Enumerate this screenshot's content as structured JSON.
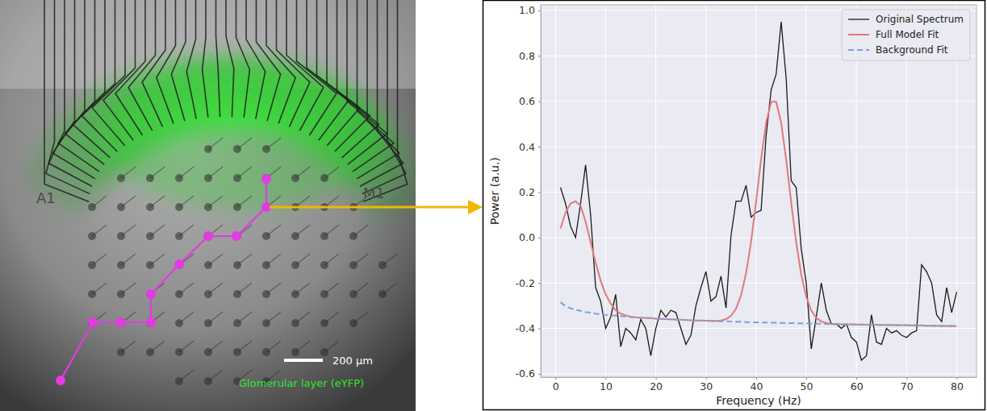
{
  "chart_data": {
    "type": "line",
    "x": [
      1,
      2,
      3,
      4,
      5,
      6,
      7,
      8,
      9,
      10,
      11,
      12,
      13,
      14,
      15,
      16,
      17,
      18,
      19,
      20,
      21,
      22,
      23,
      24,
      25,
      26,
      27,
      28,
      29,
      30,
      31,
      32,
      33,
      34,
      35,
      36,
      37,
      38,
      39,
      40,
      41,
      42,
      43,
      44,
      45,
      46,
      47,
      48,
      49,
      50,
      51,
      52,
      53,
      54,
      55,
      56,
      57,
      58,
      59,
      60,
      61,
      62,
      63,
      64,
      65,
      66,
      67,
      68,
      69,
      70,
      71,
      72,
      73,
      74,
      75,
      76,
      77,
      78,
      79,
      80
    ],
    "xlim": [
      -2.95,
      83.95
    ],
    "xticks": [
      0,
      10,
      20,
      30,
      40,
      50,
      60,
      70,
      80
    ],
    "ylim": [
      -0.6145,
      1.0245
    ],
    "yticks": [
      -0.6,
      -0.4,
      -0.2,
      {
        "value": 0,
        "label": "0.0"
      },
      0.2,
      0.4,
      0.6,
      0.8,
      {
        "value": 1,
        "label": "1.0"
      }
    ],
    "x_label": "Frequency (Hz)",
    "y_label": "Power (a.u.)",
    "grid": true,
    "legend": "upper right",
    "series": [
      {
        "name": "Original Spectrum",
        "color": "#1a1a1a",
        "line_style": "solid",
        "values": [
          0.22,
          0.15,
          0.05,
          0.0,
          0.15,
          0.32,
          0.1,
          -0.22,
          -0.28,
          -0.4,
          -0.35,
          -0.25,
          -0.48,
          -0.4,
          -0.42,
          -0.45,
          -0.36,
          -0.4,
          -0.52,
          -0.4,
          -0.32,
          -0.35,
          -0.32,
          -0.33,
          -0.4,
          -0.47,
          -0.43,
          -0.3,
          -0.22,
          -0.15,
          -0.28,
          -0.26,
          -0.17,
          -0.31,
          0.01,
          0.16,
          0.16,
          0.23,
          0.09,
          0.11,
          0.12,
          0.45,
          0.65,
          0.72,
          0.95,
          0.7,
          0.25,
          0.22,
          -0.05,
          -0.2,
          -0.49,
          -0.35,
          -0.2,
          -0.32,
          -0.38,
          -0.38,
          -0.4,
          -0.38,
          -0.44,
          -0.46,
          -0.54,
          -0.52,
          -0.34,
          -0.46,
          -0.47,
          -0.4,
          -0.42,
          -0.41,
          -0.43,
          -0.44,
          -0.42,
          -0.41,
          -0.12,
          -0.15,
          -0.2,
          -0.34,
          -0.37,
          -0.22,
          -0.33,
          -0.24
        ]
      },
      {
        "name": "Full Model Fit",
        "color": "#e07a7c",
        "line_style": "solid",
        "values": [
          0.04,
          0.11,
          0.15,
          0.16,
          0.14,
          0.07,
          -0.02,
          -0.11,
          -0.19,
          -0.25,
          -0.29,
          -0.32,
          -0.335,
          -0.343,
          -0.348,
          -0.351,
          -0.353,
          -0.354,
          -0.355,
          -0.357,
          -0.358,
          -0.359,
          -0.36,
          -0.361,
          -0.362,
          -0.363,
          -0.364,
          -0.365,
          -0.365,
          -0.366,
          -0.367,
          -0.367,
          -0.365,
          -0.359,
          -0.344,
          -0.313,
          -0.254,
          -0.157,
          -0.018,
          0.158,
          0.345,
          0.506,
          0.598,
          0.598,
          0.504,
          0.343,
          0.154,
          -0.022,
          -0.163,
          -0.261,
          -0.321,
          -0.353,
          -0.37,
          -0.376,
          -0.38,
          -0.381,
          -0.382,
          -0.382,
          -0.382,
          -0.383,
          -0.383,
          -0.384,
          -0.384,
          -0.384,
          -0.385,
          -0.385,
          -0.385,
          -0.386,
          -0.386,
          -0.386,
          -0.387,
          -0.387,
          -0.387,
          -0.388,
          -0.388,
          -0.388,
          -0.389,
          -0.389,
          -0.389,
          -0.39
        ]
      },
      {
        "name": "Background Fit",
        "color": "#7f9fd6",
        "line_style": "dashed",
        "values": [
          -0.285,
          -0.302,
          -0.311,
          -0.318,
          -0.323,
          -0.328,
          -0.331,
          -0.335,
          -0.337,
          -0.34,
          -0.342,
          -0.344,
          -0.346,
          -0.348,
          -0.35,
          -0.351,
          -0.353,
          -0.354,
          -0.355,
          -0.357,
          -0.358,
          -0.359,
          -0.36,
          -0.361,
          -0.362,
          -0.363,
          -0.364,
          -0.365,
          -0.365,
          -0.366,
          -0.367,
          -0.368,
          -0.369,
          -0.369,
          -0.37,
          -0.371,
          -0.371,
          -0.372,
          -0.373,
          -0.373,
          -0.374,
          -0.374,
          -0.375,
          -0.375,
          -0.376,
          -0.376,
          -0.377,
          -0.377,
          -0.378,
          -0.378,
          -0.379,
          -0.379,
          -0.38,
          -0.38,
          -0.381,
          -0.381,
          -0.382,
          -0.382,
          -0.382,
          -0.383,
          -0.383,
          -0.384,
          -0.384,
          -0.384,
          -0.385,
          -0.385,
          -0.385,
          -0.386,
          -0.386,
          -0.386,
          -0.387,
          -0.387,
          -0.387,
          -0.388,
          -0.388,
          -0.388,
          -0.389,
          -0.389,
          -0.389,
          -0.39
        ]
      }
    ]
  },
  "image_panel": {
    "region_labels": [
      "A1",
      "M1"
    ],
    "scale_bar": "200 µm",
    "layer_label": "Glomerular layer (eYFP)"
  }
}
